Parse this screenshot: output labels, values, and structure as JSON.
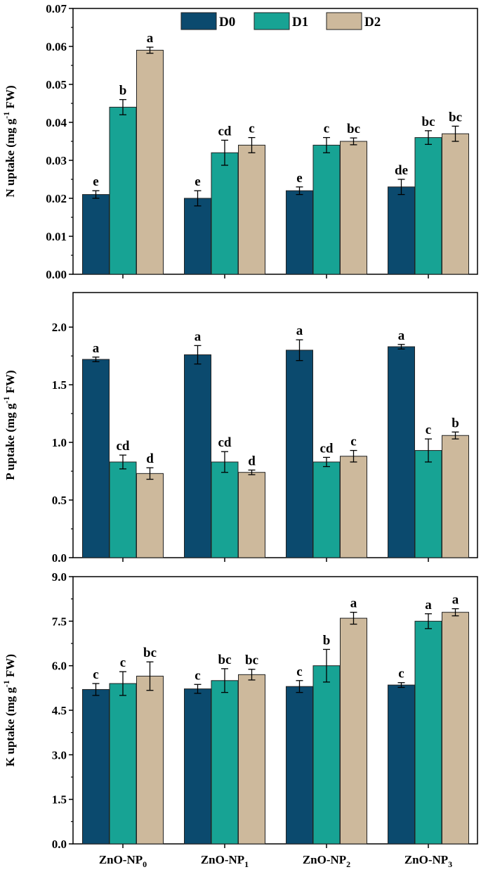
{
  "chart_data": {
    "type": "bar",
    "categories": [
      "ZnO-NP0",
      "ZnO-NP1",
      "ZnO-NP2",
      "ZnO-NP3"
    ],
    "category_labels": [
      {
        "base": "ZnO-NP",
        "sub": "0"
      },
      {
        "base": "ZnO-NP",
        "sub": "1"
      },
      {
        "base": "ZnO-NP",
        "sub": "2"
      },
      {
        "base": "ZnO-NP",
        "sub": "3"
      }
    ],
    "legend": [
      "D0",
      "D1",
      "D2"
    ],
    "colors": {
      "D0": "#0b4a6e",
      "D1": "#17a394",
      "D2": "#cdb99c"
    },
    "panels": [
      {
        "ylabel": {
          "pre": "N uptake (mg g",
          "sup": "-1",
          "post": " FW)"
        },
        "ylim": [
          0,
          0.07
        ],
        "ticks": [
          "0.00",
          "0.01",
          "0.02",
          "0.03",
          "0.04",
          "0.05",
          "0.06",
          "0.07"
        ],
        "series": [
          {
            "name": "D0",
            "values": [
              0.021,
              0.02,
              0.022,
              0.023
            ],
            "errors": [
              0.001,
              0.002,
              0.001,
              0.002
            ],
            "letters": [
              "e",
              "e",
              "e",
              "de"
            ]
          },
          {
            "name": "D1",
            "values": [
              0.044,
              0.032,
              0.034,
              0.036
            ],
            "errors": [
              0.002,
              0.0033,
              0.002,
              0.0018
            ],
            "letters": [
              "b",
              "cd",
              "c",
              "bc"
            ]
          },
          {
            "name": "D2",
            "values": [
              0.059,
              0.034,
              0.035,
              0.037
            ],
            "errors": [
              0.0008,
              0.002,
              0.0009,
              0.002
            ],
            "letters": [
              "a",
              "c",
              "bc",
              "bc"
            ]
          }
        ]
      },
      {
        "ylabel": {
          "pre": "P uptake (mg g",
          "sup": "-1",
          "post": " FW)"
        },
        "ylim": [
          0,
          2.3
        ],
        "ticks": [
          "0.0",
          "0.5",
          "1.0",
          "1.5",
          "2.0"
        ],
        "series": [
          {
            "name": "D0",
            "values": [
              1.72,
              1.76,
              1.8,
              1.83
            ],
            "errors": [
              0.02,
              0.08,
              0.09,
              0.02
            ],
            "letters": [
              "a",
              "a",
              "a",
              "a"
            ]
          },
          {
            "name": "D1",
            "values": [
              0.83,
              0.83,
              0.83,
              0.93
            ],
            "errors": [
              0.06,
              0.09,
              0.04,
              0.1
            ],
            "letters": [
              "cd",
              "cd",
              "cd",
              "c"
            ]
          },
          {
            "name": "D2",
            "values": [
              0.73,
              0.74,
              0.88,
              1.06
            ],
            "errors": [
              0.05,
              0.02,
              0.05,
              0.03
            ],
            "letters": [
              "d",
              "d",
              "c",
              "b"
            ]
          }
        ]
      },
      {
        "ylabel": {
          "pre": "K uptake (mg g",
          "sup": "-1",
          "post": " FW)"
        },
        "ylim": [
          0,
          9.0
        ],
        "ticks": [
          "0.0",
          "1.5",
          "3.0",
          "4.5",
          "6.0",
          "7.5",
          "9.0"
        ],
        "series": [
          {
            "name": "D0",
            "values": [
              5.2,
              5.22,
              5.3,
              5.35
            ],
            "errors": [
              0.2,
              0.15,
              0.2,
              0.08
            ],
            "letters": [
              "c",
              "c",
              "c",
              "c"
            ]
          },
          {
            "name": "D1",
            "values": [
              5.4,
              5.5,
              6.0,
              7.5
            ],
            "errors": [
              0.4,
              0.4,
              0.55,
              0.25
            ],
            "letters": [
              "c",
              "bc",
              "b",
              "a"
            ]
          },
          {
            "name": "D2",
            "values": [
              5.65,
              5.7,
              7.6,
              7.8
            ],
            "errors": [
              0.48,
              0.18,
              0.2,
              0.12
            ],
            "letters": [
              "bc",
              "bc",
              "a",
              "a"
            ]
          }
        ]
      }
    ]
  }
}
